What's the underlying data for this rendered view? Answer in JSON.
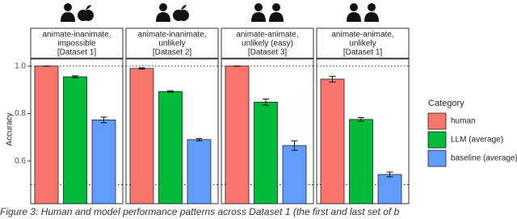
{
  "chart_data": {
    "type": "bar",
    "y_label": "Accuracy",
    "legend_title": "Category",
    "legend_position": "right",
    "categories": [
      "human",
      "LLM (average)",
      "baseline (average)"
    ],
    "colors": [
      "#f8766d",
      "#00ba38",
      "#619cff"
    ],
    "ylim": [
      0.42,
      1.03
    ],
    "yticks": [
      0.6,
      0.8,
      {
        "value": 1,
        "label": "1.0"
      }
    ],
    "reference_lines": [
      0.5,
      1
    ],
    "facets": [
      {
        "label": [
          "animate-inanimate,",
          "impossible",
          "[Dataset 1]"
        ],
        "values": [
          1,
          0.955,
          0.773
        ],
        "errors": [
          0,
          0.004,
          0.012
        ]
      },
      {
        "label": [
          "animate-inanimate,",
          "unlikely",
          "[Dataset 2]"
        ],
        "values": [
          0.99,
          0.893,
          0.69
        ],
        "errors": [
          0.003,
          0.003,
          0.005
        ]
      },
      {
        "label": [
          "animate-animate,",
          "unlikely (easy)",
          "[Dataset 3]"
        ],
        "values": [
          1,
          0.848,
          0.665
        ],
        "errors": [
          0,
          0.013,
          0.02
        ]
      },
      {
        "label": [
          "animate-animate,",
          "unlikely",
          "[Dataset 1]"
        ],
        "values": [
          0.945,
          0.775,
          0.543
        ],
        "errors": [
          0.012,
          0.008,
          0.01
        ]
      }
    ],
    "caption": "Figure 3: Human and model performance patterns across Dataset 1 (the first and last set of b"
  }
}
